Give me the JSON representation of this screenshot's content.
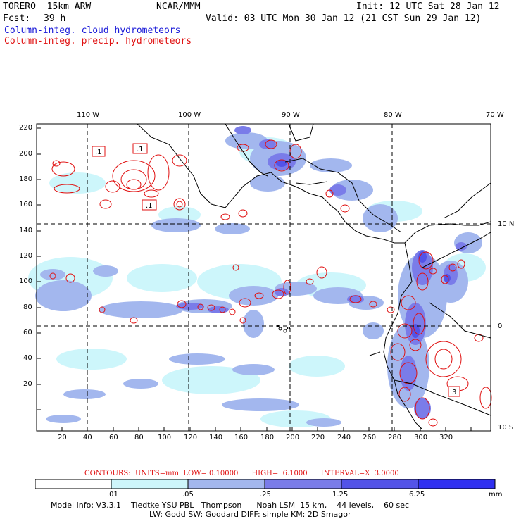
{
  "header": {
    "model": "TORERO  15km ARW",
    "org": "NCAR/MMM",
    "init": "Init: 12 UTC Sat 28 Jan 12",
    "fcst_label": "Fcst:",
    "fcst_value": "39 h",
    "valid": "Valid: 03 UTC Mon 30 Jan 12 (21 CST Sun 29 Jan 12)",
    "line_cloud": "Column-integ. cloud hydrometeors",
    "line_precip": "Column-integ. precip. hydrometeors"
  },
  "colors": {
    "cloud_text": "#1a1ad8",
    "precip_text": "#e01010",
    "contour": "#e01010",
    "land": "#000000"
  },
  "map": {
    "lon_labels": [
      "110 W",
      "100 W",
      "90 W",
      "80 W",
      "70 W"
    ],
    "lat_labels": [
      "10 N",
      "0",
      "10 S"
    ],
    "y_ticks": [
      "220",
      "200",
      "180",
      "160",
      "140",
      "120",
      "100",
      "80",
      "60",
      "40",
      "20"
    ],
    "x_ticks": [
      "20",
      "40",
      "60",
      "80",
      "100",
      "120",
      "140",
      "160",
      "180",
      "200",
      "220",
      "240",
      "260",
      "280",
      "300",
      "320"
    ],
    "contour_labels": [
      ".1",
      ".1",
      ".1",
      "3"
    ]
  },
  "colorbar": {
    "levels": [
      ".01",
      ".05",
      ".25",
      "1.25",
      "6.25"
    ],
    "unit": "mm",
    "colors": [
      "#ffffff",
      "#cdf6fb",
      "#a3b7ee",
      "#7a7ce9",
      "#5353e8",
      "#3030f0"
    ]
  },
  "contours_info": "CONTOURS:  UNITS=mm  LOW= 0.10000      HIGH=  6.1000      INTERVAL=X  3.0000",
  "model_info": {
    "line1": "Model Info: V3.3.1    Tiedtke YSU PBL   Thompson      Noah LSM  15 km,    44 levels,    60 sec",
    "line2": "LW: Godd SW: Goddard DIFF: simple KM: 2D Smagor"
  }
}
